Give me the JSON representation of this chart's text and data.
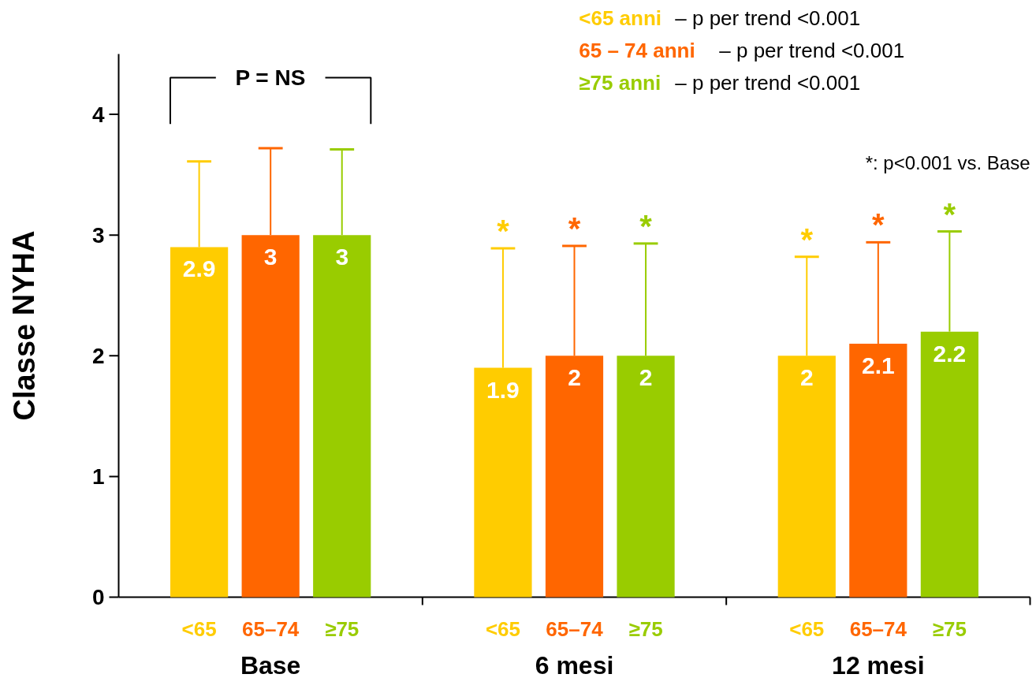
{
  "chart_data": {
    "type": "bar",
    "ylabel": "Classe NYHA",
    "categories": [
      "Base",
      "6 mesi",
      "12 mesi"
    ],
    "series": [
      {
        "name": "<65 anni",
        "color": "#ffcc00",
        "values": [
          2.9,
          1.9,
          2
        ],
        "errors": [
          [
            2.9,
            3.61
          ],
          [
            1.9,
            2.89
          ],
          [
            2,
            2.82
          ]
        ]
      },
      {
        "name": "65 – 74 anni",
        "color": "#ff6600",
        "values": [
          3,
          2,
          2.1
        ],
        "errors": [
          [
            3,
            3.72
          ],
          [
            2,
            2.91
          ],
          [
            2.1,
            2.94
          ]
        ]
      },
      {
        "name": "≥75 anni",
        "color": "#99cc00",
        "values": [
          3,
          2,
          2.2
        ],
        "errors": [
          [
            3,
            3.71
          ],
          [
            2,
            2.93
          ],
          [
            2.2,
            3.03
          ]
        ]
      }
    ],
    "ylim": [
      0,
      4.5
    ],
    "yticks": [
      0,
      1,
      2,
      3,
      4
    ],
    "grid": false,
    "legend": "top right",
    "data_labels": true,
    "annotations": [
      "– p per trend <0.001",
      "– p per trend <0.001",
      "– p per trend <0.001",
      "*: p<0.001 vs. Base",
      "P = NS",
      "*",
      "*",
      "*",
      "*",
      "*",
      "*",
      "<65",
      "65–74",
      "≥75",
      "<65",
      "65–74",
      "≥75",
      "<65",
      "65–74",
      "≥75"
    ]
  }
}
